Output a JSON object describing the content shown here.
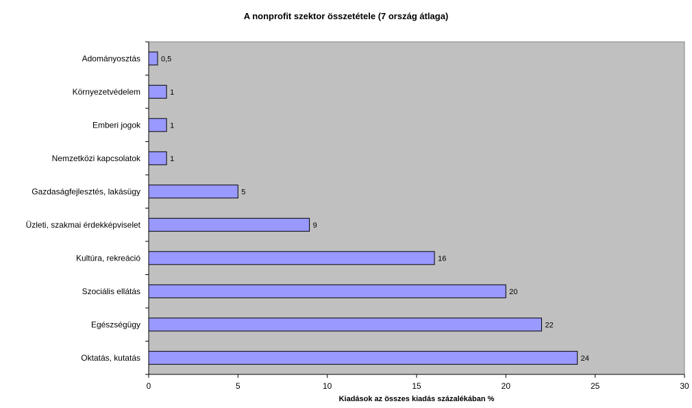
{
  "chart_data": {
    "type": "bar",
    "orientation": "horizontal",
    "title": "A nonprofit szektor összetétele (7 ország átlaga)",
    "xlabel": "Kiadások az összes kiadás százalékában  %",
    "ylabel": "",
    "xlim": [
      0,
      30
    ],
    "xticks": [
      0,
      5,
      10,
      15,
      20,
      25,
      30
    ],
    "grid": false,
    "categories": [
      "Adományosztás",
      "Környezetvédelem",
      "Emberi jogok",
      "Nemzetközi kapcsolatok",
      "Gazdaságfejlesztés, lakásügy",
      "Üzleti, szakmai érdekképviselet",
      "Kultúra, rekreáció",
      "Szociális ellátás",
      "Egészségügy",
      "Oktatás, kutatás"
    ],
    "values": [
      0.5,
      1,
      1,
      1,
      5,
      9,
      16,
      20,
      22,
      24
    ],
    "value_labels": [
      "0,5",
      "1",
      "1",
      "1",
      "5",
      "9",
      "16",
      "20",
      "22",
      "24"
    ],
    "colors": {
      "bar_fill": "#9999ff",
      "bar_stroke": "#000000",
      "plot_background": "#c0c0c0"
    }
  }
}
